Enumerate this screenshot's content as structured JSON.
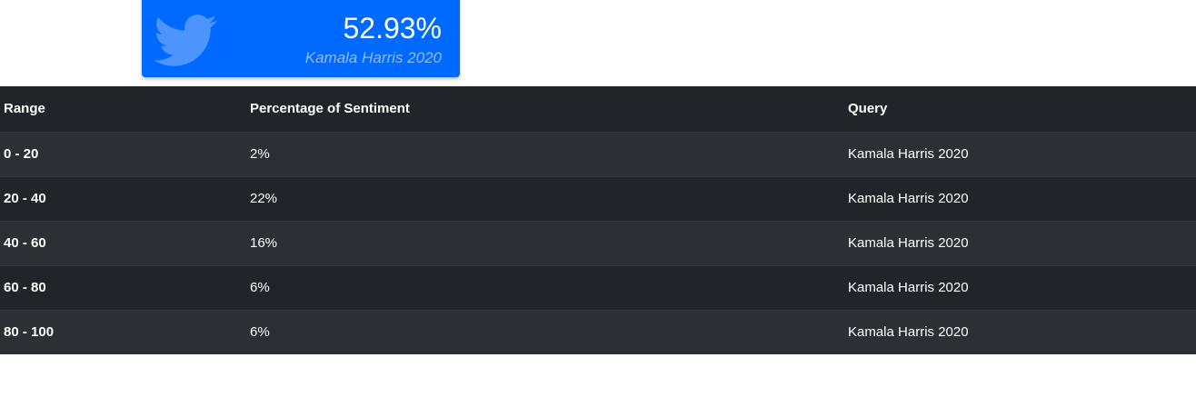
{
  "stat_card": {
    "value": "52.93%",
    "caption": "Kamala Harris 2020",
    "icon": "twitter-icon",
    "background_color": "#0069ff"
  },
  "table": {
    "headers": [
      "Range",
      "Percentage of Sentiment",
      "Query"
    ],
    "rows": [
      {
        "range": "0 - 20",
        "percentage": "2%",
        "query": "Kamala Harris 2020"
      },
      {
        "range": "20 - 40",
        "percentage": "22%",
        "query": "Kamala Harris 2020"
      },
      {
        "range": "40 - 60",
        "percentage": "16%",
        "query": "Kamala Harris 2020"
      },
      {
        "range": "60 - 80",
        "percentage": "6%",
        "query": "Kamala Harris 2020"
      },
      {
        "range": "80 - 100",
        "percentage": "6%",
        "query": "Kamala Harris 2020"
      }
    ]
  }
}
